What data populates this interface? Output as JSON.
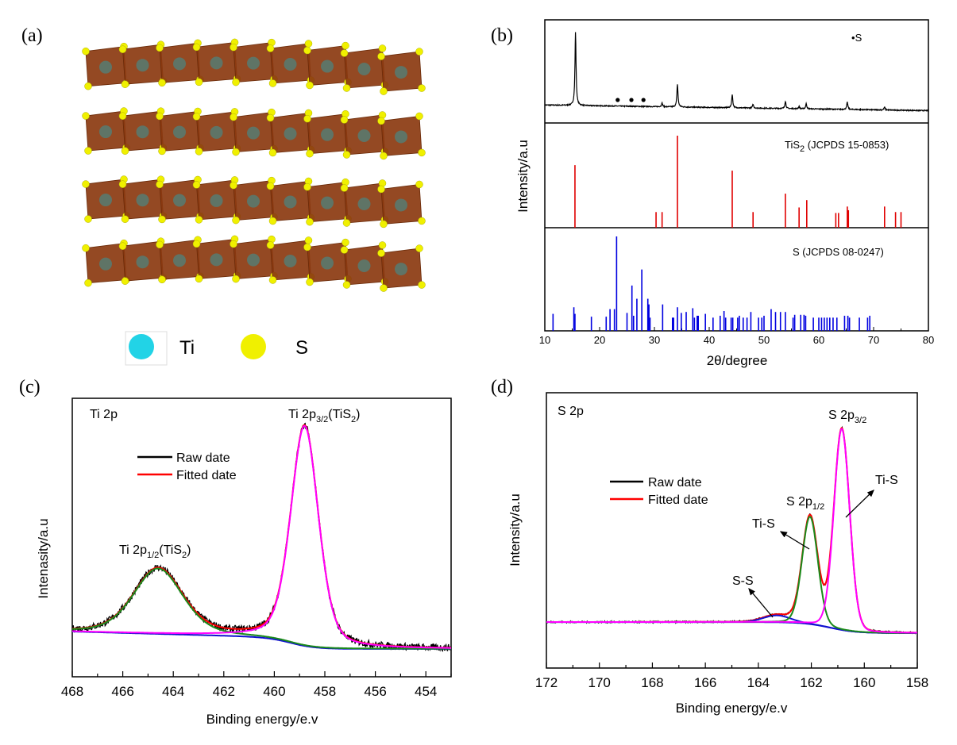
{
  "panel_labels": {
    "a": "(a)",
    "b": "(b)",
    "c": "(c)",
    "d": "(d)"
  },
  "structure": {
    "layers": 4,
    "octahedra_per_layer": 9,
    "octahedron_color": "#8b3a10",
    "ti_center_color": "#5f7466",
    "legend": [
      {
        "label": "Ti",
        "color": "#22d3e6"
      },
      {
        "label": "S",
        "color": "#f0f000"
      }
    ]
  },
  "chart_data": [
    {
      "panel": "b",
      "type": "line+stick",
      "xlabel": "2θ/degree",
      "ylabel": "Intensity/a.u",
      "xlim": [
        10,
        80
      ],
      "xticks": [
        10,
        20,
        30,
        40,
        50,
        60,
        70,
        80
      ],
      "legend": {
        "marker": "•",
        "label": "S"
      },
      "pattern": {
        "type": "line",
        "color": "#000000",
        "peaks": [
          [
            15.6,
            100
          ],
          [
            31.4,
            5
          ],
          [
            34.2,
            31
          ],
          [
            44.2,
            18
          ],
          [
            48.0,
            5
          ],
          [
            53.9,
            10
          ],
          [
            56.4,
            3
          ],
          [
            57.7,
            7
          ],
          [
            65.2,
            10
          ],
          [
            72.0,
            4
          ]
        ],
        "s_marked_peaks": [
          23.3,
          25.8,
          28.0
        ]
      },
      "references": [
        {
          "label_main": "TiS",
          "label_sub": "2",
          "label_rest": " (JCPDS 15-0853)",
          "color": "#e00000",
          "sticks": [
            [
              15.5,
              68
            ],
            [
              30.3,
              17
            ],
            [
              31.4,
              17
            ],
            [
              34.2,
              100
            ],
            [
              44.2,
              62
            ],
            [
              48.0,
              17
            ],
            [
              53.9,
              37
            ],
            [
              56.4,
              22
            ],
            [
              57.8,
              30
            ],
            [
              63.1,
              16
            ],
            [
              63.6,
              16
            ],
            [
              65.2,
              23
            ],
            [
              65.4,
              19
            ],
            [
              72.0,
              23
            ],
            [
              74.0,
              17
            ],
            [
              75.0,
              17
            ]
          ]
        },
        {
          "label_main": "S (JCPDS 08-0247)",
          "label_sub": "",
          "label_rest": "",
          "color": "#0000e0",
          "sticks": [
            [
              11.5,
              18
            ],
            [
              15.3,
              25
            ],
            [
              15.5,
              18
            ],
            [
              18.5,
              15
            ],
            [
              21.2,
              15
            ],
            [
              21.9,
              23
            ],
            [
              22.7,
              23
            ],
            [
              23.1,
              100
            ],
            [
              25.0,
              19
            ],
            [
              25.9,
              48
            ],
            [
              26.2,
              16
            ],
            [
              26.8,
              34
            ],
            [
              27.7,
              65
            ],
            [
              28.8,
              34
            ],
            [
              29.0,
              28
            ],
            [
              29.2,
              14
            ],
            [
              31.5,
              28
            ],
            [
              33.3,
              14
            ],
            [
              33.5,
              14
            ],
            [
              34.2,
              25
            ],
            [
              34.9,
              19
            ],
            [
              35.8,
              20
            ],
            [
              37.0,
              24
            ],
            [
              37.3,
              14
            ],
            [
              37.8,
              16
            ],
            [
              38.0,
              16
            ],
            [
              39.3,
              18
            ],
            [
              40.7,
              14
            ],
            [
              42.0,
              16
            ],
            [
              42.7,
              21
            ],
            [
              43.0,
              14
            ],
            [
              44.0,
              14
            ],
            [
              44.3,
              14
            ],
            [
              45.2,
              14
            ],
            [
              45.5,
              16
            ],
            [
              46.2,
              14
            ],
            [
              46.9,
              14
            ],
            [
              47.6,
              20
            ],
            [
              49.0,
              14
            ],
            [
              49.6,
              14
            ],
            [
              50.0,
              16
            ],
            [
              51.3,
              23
            ],
            [
              52.1,
              20
            ],
            [
              53.0,
              20
            ],
            [
              53.9,
              20
            ],
            [
              55.3,
              14
            ],
            [
              55.6,
              17
            ],
            [
              56.7,
              17
            ],
            [
              57.3,
              17
            ],
            [
              57.6,
              16
            ],
            [
              59.0,
              14
            ],
            [
              60.0,
              14
            ],
            [
              60.5,
              14
            ],
            [
              61.0,
              14
            ],
            [
              61.5,
              14
            ],
            [
              62.0,
              14
            ],
            [
              62.6,
              14
            ],
            [
              63.3,
              14
            ],
            [
              64.7,
              16
            ],
            [
              65.3,
              16
            ],
            [
              65.6,
              14
            ],
            [
              67.4,
              14
            ],
            [
              68.9,
              14
            ],
            [
              69.3,
              16
            ]
          ]
        }
      ]
    },
    {
      "panel": "c",
      "type": "line",
      "title": "Ti 2p",
      "xlabel": "Binding energy/e.v",
      "ylabel": "Intenasity/a.u",
      "xlim": [
        468,
        453
      ],
      "xticks": [
        468,
        466,
        464,
        462,
        460,
        458,
        456,
        454
      ],
      "ylim": [
        0,
        1
      ],
      "legend": [
        {
          "label": "Raw date",
          "color": "#000000"
        },
        {
          "label": "Fitted date",
          "color": "#ff0000"
        }
      ],
      "background": {
        "color": "#1010d0",
        "low": 0.1,
        "step": 0.04,
        "step_center": 459.3,
        "slope": 0.0025
      },
      "components": [
        {
          "center": 464.6,
          "amplitude": 0.235,
          "fwhm": 2.3,
          "color": "#1a8a1a",
          "label_pre": "Ti 2p",
          "label_sub": "1/2",
          "label_mid": "(TiS",
          "label_sub2": "2",
          "label_end": ")"
        },
        {
          "center": 458.8,
          "amplitude": 0.79,
          "fwhm": 1.3,
          "color": "#ff00ff",
          "label_pre": "Ti 2p",
          "label_sub": "3/2",
          "label_mid": "(TiS",
          "label_sub2": "2",
          "label_end": ")"
        }
      ]
    },
    {
      "panel": "d",
      "type": "line",
      "title": "S 2p",
      "xlabel": "Binding energy/e.v",
      "ylabel": "Intensity/a.u",
      "xlim": [
        172,
        158
      ],
      "xticks": [
        172,
        170,
        168,
        166,
        164,
        162,
        160,
        158
      ],
      "ylim": [
        0,
        1
      ],
      "legend": [
        {
          "label": "Raw date",
          "color": "#000000"
        },
        {
          "label": "Fitted date",
          "color": "#ff0000"
        }
      ],
      "background": {
        "color": "#1010d0",
        "low": 0.127,
        "step": 0.04,
        "step_center": 161.3,
        "slope": 0
      },
      "components": [
        {
          "center": 163.3,
          "amplitude": 0.025,
          "fwhm": 1.2,
          "color": "#1010d0",
          "bond": "S-S"
        },
        {
          "center": 162.05,
          "amplitude": 0.39,
          "fwhm": 0.7,
          "color": "#1a8a1a",
          "bond": "Ti-S",
          "label_pre": "S 2p",
          "label_sub": "1/2"
        },
        {
          "center": 160.85,
          "amplitude": 0.73,
          "fwhm": 0.7,
          "color": "#ff00ff",
          "bond": "Ti-S",
          "label_pre": "S 2p",
          "label_sub": "3/2"
        }
      ]
    }
  ]
}
